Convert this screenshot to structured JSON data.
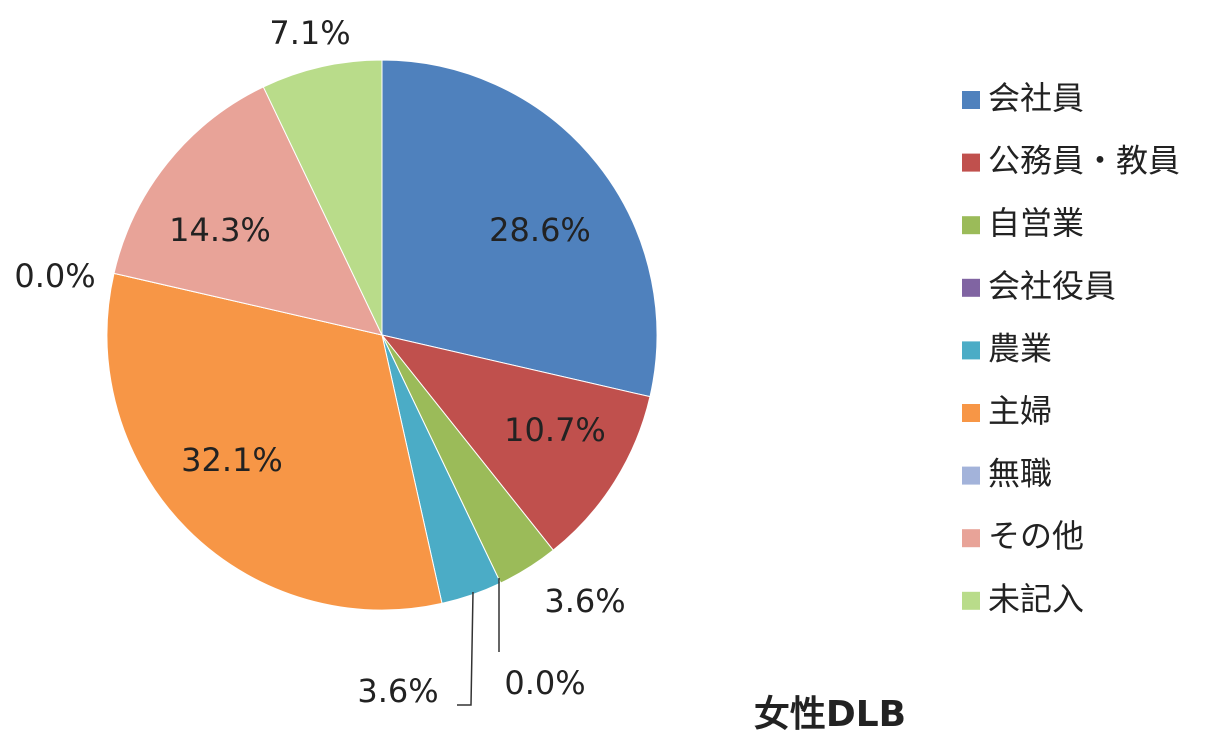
{
  "chart_data": {
    "type": "pie",
    "title": "女性DLB",
    "categories": [
      "会社員",
      "公務員・教員",
      "自営業",
      "会社役員",
      "農業",
      "主婦",
      "無職",
      "その他",
      "未記入"
    ],
    "values": [
      28.6,
      10.7,
      3.6,
      0.0,
      3.6,
      32.1,
      0.0,
      14.3,
      7.1
    ],
    "value_labels": [
      "28.6%",
      "10.7%",
      "3.6%",
      "0.0%",
      "3.6%",
      "32.1%",
      "0.0%",
      "14.3%",
      "7.1%"
    ],
    "colors": [
      "#4f81bd",
      "#c0504d",
      "#9bbb59",
      "#8064a2",
      "#4bacc6",
      "#f79646",
      "#a3b3da",
      "#e8a398",
      "#b9dc8a"
    ],
    "legend": "right"
  }
}
